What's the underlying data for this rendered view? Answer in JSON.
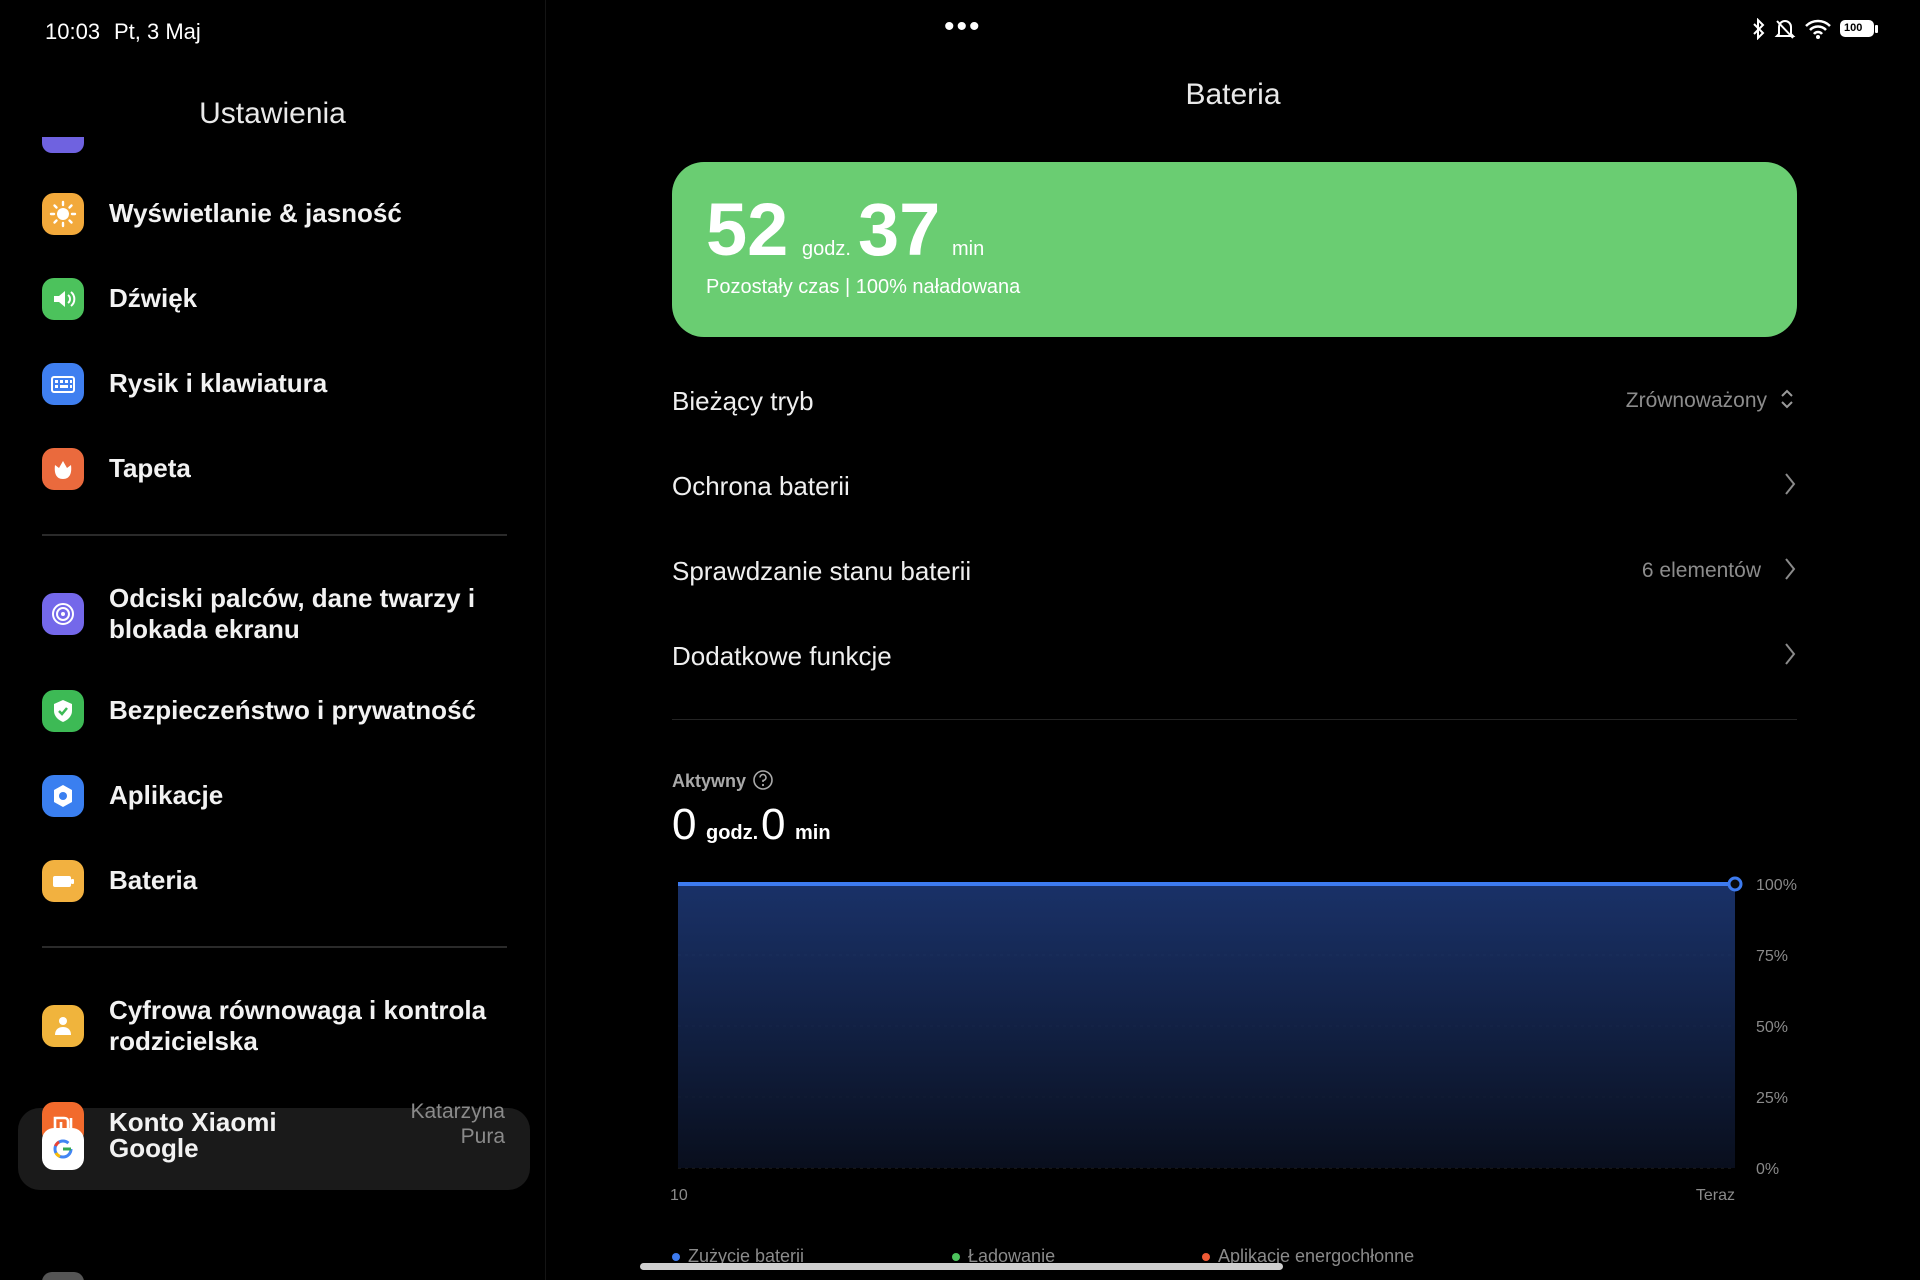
{
  "status_bar": {
    "time": "10:03",
    "date": "Pt, 3 Maj",
    "battery_level": "100"
  },
  "left_pane": {
    "title": "Ustawienia",
    "items": [
      {
        "label": "Wyświetlanie & jasność",
        "icon": "brightness-icon",
        "color": "#f2a93b"
      },
      {
        "label": "Dźwięk",
        "icon": "speaker-icon",
        "color": "#4cc25c"
      },
      {
        "label": "Rysik i klawiatura",
        "icon": "keyboard-icon",
        "color": "#3f7ff0"
      },
      {
        "label": "Tapeta",
        "icon": "wallpaper-icon",
        "color": "#ea6a3d"
      },
      {
        "label": "Odciski palców, dane twarzy i blokada ekranu",
        "icon": "fingerprint-icon",
        "color": "#7468ea"
      },
      {
        "label": "Bezpieczeństwo i prywatność",
        "icon": "shield-icon",
        "color": "#3dba55"
      },
      {
        "label": "Aplikacje",
        "icon": "apps-gear-icon",
        "color": "#3a7ff0"
      },
      {
        "label": "Bateria",
        "icon": "battery-icon",
        "color": "#f2b140"
      },
      {
        "label": "Cyfrowa równowaga i kontrola rodzicielska",
        "icon": "wellbeing-icon",
        "color": "#f0b43c"
      },
      {
        "label": "Konto Xiaomi",
        "icon": "xiaomi-icon",
        "color": "#f26a2c",
        "side": "Katarzyna Pura"
      },
      {
        "label": "Google",
        "icon": "google-icon",
        "color": "#ffffff"
      }
    ]
  },
  "right_pane": {
    "title": "Bateria",
    "card": {
      "hours": "52",
      "hours_unit": "godz.",
      "minutes": "37",
      "minutes_unit": "min",
      "subtitle": "Pozostały czas | 100% naładowana",
      "color": "#6acd72"
    },
    "rows": [
      {
        "label": "Bieżący tryb",
        "value": "Zrównoważony"
      },
      {
        "label": "Ochrona baterii",
        "value": ""
      },
      {
        "label": "Sprawdzanie stanu baterii",
        "value": "6 elementów"
      },
      {
        "label": "Dodatkowe funkcje",
        "value": ""
      }
    ],
    "active": {
      "label": "Aktywny",
      "hours": "0",
      "hours_unit": "godz.",
      "minutes": "0",
      "minutes_unit": "min"
    },
    "legend": [
      {
        "label": "Zużycie baterii",
        "color": "#3d7bef"
      },
      {
        "label": "Ładowanie",
        "color": "#4cc25c"
      },
      {
        "label": "Aplikacje energochłonne",
        "color": "#ef5a35"
      }
    ]
  },
  "chart_data": {
    "type": "area",
    "x": [
      "10",
      "Teraz"
    ],
    "xticks": [
      "10",
      "Teraz"
    ],
    "series": [
      {
        "values": [
          100,
          100
        ]
      }
    ],
    "yticks": [
      "100%",
      "75%",
      "50%",
      "25%",
      "0%"
    ],
    "ylim": [
      0,
      100
    ],
    "grid": true,
    "color": "#3d7bef"
  }
}
